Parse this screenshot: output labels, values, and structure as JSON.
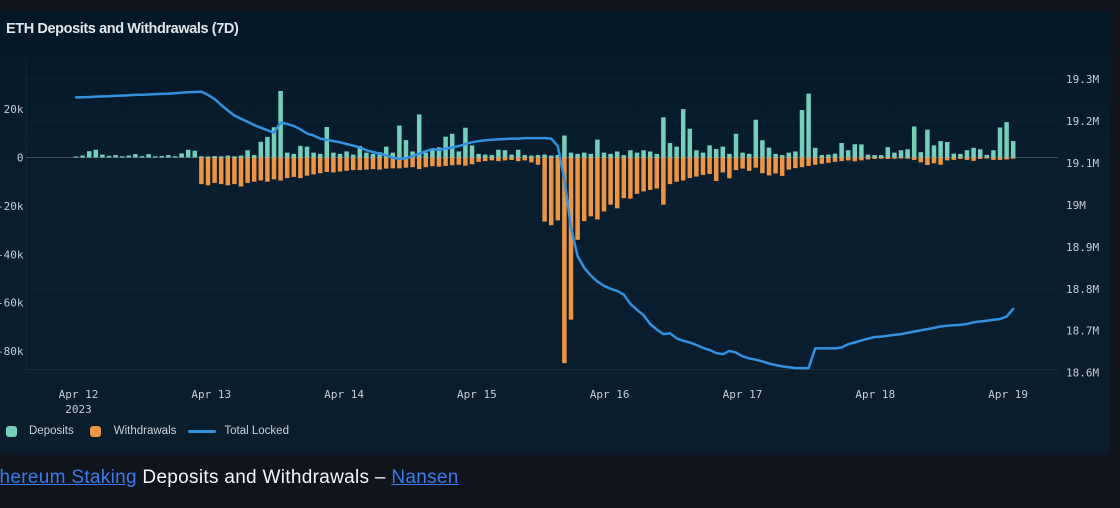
{
  "title": "ETH Deposits and Withdrawals (7D)",
  "caption": {
    "link_ethereum_staking": "Ethereum Staking",
    "middle_text": "Deposits and Withdrawals –",
    "link_nansen": "Nansen"
  },
  "legend": {
    "deposits_label": "Deposits",
    "withdrawals_label": "Withdrawals",
    "total_locked_label": "Total Locked"
  },
  "colors": {
    "deposits": "#74d0bc",
    "withdrawals": "#ee9543",
    "total_locked_line": "#3392e0",
    "card_background": "#081d2e",
    "page_background": "#10141c",
    "tick_label": "#c6cdd5",
    "zero_line": "#424e5a",
    "grid_line": "rgba(140,160,180,0.05)",
    "link_blue": "#3b7cf0"
  },
  "chart_data": {
    "type": "bar",
    "title": "ETH Deposits and Withdrawals (7D)",
    "x_tick_labels": [
      "Apr 12",
      "Apr 13",
      "Apr 14",
      "Apr 15",
      "Apr 16",
      "Apr 17",
      "Apr 18",
      "Apr 19"
    ],
    "x_year_label": "2023",
    "points_per_day": 20,
    "left_axis": {
      "tick_labels": [
        "20k",
        "0",
        "-20k",
        "-40k",
        "-60k",
        "-80k"
      ],
      "tick_values_k": [
        20,
        0,
        -20,
        -40,
        -60,
        -80
      ],
      "range_k": [
        -86,
        30
      ],
      "unit": "ETH (thousands)"
    },
    "right_axis": {
      "tick_labels": [
        "19.3M",
        "19.2M",
        "19.1M",
        "19M",
        "18.9M",
        "18.8M",
        "18.7M",
        "18.6M"
      ],
      "tick_values_m": [
        19.3,
        19.2,
        19.1,
        19.0,
        18.9,
        18.8,
        18.7,
        18.6
      ],
      "range_m": [
        18.57,
        19.32
      ],
      "zero_aligns_with_m": 19.1
    },
    "grid": "horizontal-faint",
    "legend_position": "bottom-left",
    "series": [
      {
        "name": "Deposits",
        "type": "bar",
        "color": "#74d0bc",
        "unit": "k ETH",
        "values": [
          0.3,
          0.8,
          2.6,
          3.2,
          1.2,
          0.7,
          1.0,
          0.5,
          0.8,
          1.4,
          0.6,
          1.4,
          0.5,
          0.6,
          1.0,
          0.5,
          1.7,
          3.2,
          2.8,
          0.5,
          0.4,
          0.6,
          0.5,
          0.8,
          0.5,
          0.8,
          3.0,
          1.0,
          6.5,
          8.5,
          12.5,
          27.5,
          2.0,
          1.5,
          4.8,
          4.5,
          2.0,
          1.5,
          12.6,
          2.0,
          1.5,
          2.5,
          1.2,
          4.8,
          2.0,
          1.5,
          2.2,
          4.5,
          2.0,
          13.2,
          7.2,
          2.5,
          17.8,
          2.0,
          3.0,
          4.2,
          8.6,
          9.8,
          2.5,
          12.3,
          5.0,
          1.5,
          1.2,
          1.0,
          3.2,
          3.0,
          1.2,
          3.2,
          1.0,
          0.8,
          1.0,
          1.2,
          0.8,
          1.0,
          9.1,
          2.0,
          1.5,
          2.0,
          1.5,
          7.4,
          2.0,
          1.5,
          2.5,
          1.0,
          3.0,
          2.0,
          3.0,
          2.5,
          1.5,
          16.6,
          6.0,
          4.5,
          20.0,
          11.9,
          3.0,
          2.0,
          5.0,
          3.5,
          4.5,
          1.5,
          9.8,
          2.0,
          1.5,
          15.6,
          7.1,
          4.1,
          1.5,
          1.0,
          2.0,
          2.5,
          19.6,
          26.4,
          4.0,
          1.0,
          1.2,
          1.6,
          6.0,
          3.0,
          5.5,
          5.4,
          1.2,
          1.0,
          1.0,
          4.3,
          2.0,
          3.0,
          3.4,
          12.8,
          2.2,
          11.5,
          5.0,
          6.8,
          6.4,
          1.6,
          1.5,
          3.0,
          4.0,
          3.4,
          1.1,
          3.0,
          12.4,
          14.6,
          6.8
        ]
      },
      {
        "name": "Withdrawals",
        "type": "bar",
        "color": "#ee9543",
        "unit": "k ETH",
        "values": [
          0,
          0,
          0,
          0,
          0,
          0,
          0,
          0,
          0,
          0,
          0,
          0,
          0,
          0,
          0,
          0,
          0,
          0,
          0,
          -11.0,
          -11.5,
          -10.5,
          -11.0,
          -11.5,
          -11.0,
          -12.0,
          -10.5,
          -10.0,
          -9.5,
          -10.0,
          -9.0,
          -9.5,
          -8.5,
          -8.0,
          -8.5,
          -7.5,
          -7.0,
          -6.5,
          -6.0,
          -6.2,
          -5.8,
          -5.5,
          -5.2,
          -5.2,
          -5.0,
          -4.8,
          -5.0,
          -4.6,
          -4.5,
          -4.5,
          -4.2,
          -4.0,
          -4.8,
          -4.0,
          -3.6,
          -3.8,
          -3.5,
          -3.2,
          -3.0,
          -3.4,
          -2.8,
          -1.8,
          -1.5,
          -1.2,
          -1.5,
          -1.2,
          -1.0,
          -1.5,
          -1.2,
          -2.0,
          -3.0,
          -26.5,
          -28.0,
          -26.0,
          -85.0,
          -67.0,
          -34.0,
          -26.3,
          -24.3,
          -25.6,
          -22.3,
          -19.5,
          -21.0,
          -16.8,
          -17.0,
          -15.0,
          -14.0,
          -13.4,
          -12.8,
          -19.5,
          -11.0,
          -10.0,
          -9.5,
          -8.5,
          -7.9,
          -7.2,
          -6.8,
          -9.7,
          -6.2,
          -8.6,
          -5.2,
          -4.6,
          -5.5,
          -4.2,
          -6.5,
          -7.4,
          -6.6,
          -7.6,
          -5.0,
          -4.4,
          -4.0,
          -3.5,
          -3.0,
          -2.6,
          -2.2,
          -1.8,
          -1.5,
          -1.2,
          -1.6,
          -1.2,
          -0.8,
          -0.6,
          -0.5,
          -0.6,
          -0.5,
          -0.4,
          -0.5,
          -1.0,
          -2.0,
          -3.1,
          -2.4,
          -3.0,
          -1.2,
          -1.0,
          -0.6,
          -1.0,
          -1.4,
          -0.6,
          -0.4,
          -1.0,
          -1.0,
          -0.8,
          -0.5
        ]
      },
      {
        "name": "Total Locked",
        "type": "line",
        "color": "#3392e0",
        "unit": "M ETH",
        "values": [
          19.256,
          19.2565,
          19.257,
          19.258,
          19.2585,
          19.259,
          19.26,
          19.2605,
          19.261,
          19.262,
          19.2625,
          19.263,
          19.264,
          19.2645,
          19.265,
          19.266,
          19.2675,
          19.2685,
          19.269,
          19.2695,
          19.262,
          19.252,
          19.238,
          19.225,
          19.213,
          19.205,
          19.198,
          19.19,
          19.184,
          19.178,
          19.172,
          19.196,
          19.193,
          19.188,
          19.18,
          19.17,
          19.165,
          19.158,
          19.155,
          19.152,
          19.149,
          19.145,
          19.141,
          19.137,
          19.13,
          19.126,
          19.122,
          19.118,
          19.1125,
          19.1095,
          19.111,
          19.116,
          19.122,
          19.128,
          19.133,
          19.131,
          19.134,
          19.137,
          19.14,
          19.145,
          19.149,
          19.152,
          19.154,
          19.155,
          19.156,
          19.157,
          19.158,
          19.158,
          19.159,
          19.159,
          19.159,
          19.159,
          19.158,
          19.14,
          19.06,
          18.945,
          18.878,
          18.85,
          18.832,
          18.817,
          18.807,
          18.8,
          18.795,
          18.786,
          18.764,
          18.75,
          18.737,
          18.716,
          18.703,
          18.692,
          18.694,
          18.682,
          18.676,
          18.672,
          18.666,
          18.659,
          18.654,
          18.647,
          18.644,
          18.652,
          18.648,
          18.639,
          18.634,
          18.631,
          18.627,
          18.622,
          18.618,
          18.615,
          18.613,
          18.611,
          18.611,
          18.611,
          18.658,
          18.658,
          18.658,
          18.658,
          18.66,
          18.668,
          18.672,
          18.677,
          18.681,
          18.685,
          18.686,
          18.688,
          18.69,
          18.692,
          18.695,
          18.698,
          18.701,
          18.704,
          18.707,
          18.71,
          18.712,
          18.713,
          18.714,
          18.716,
          18.72,
          18.722,
          18.724,
          18.726,
          18.728,
          18.734,
          18.752
        ]
      }
    ]
  }
}
